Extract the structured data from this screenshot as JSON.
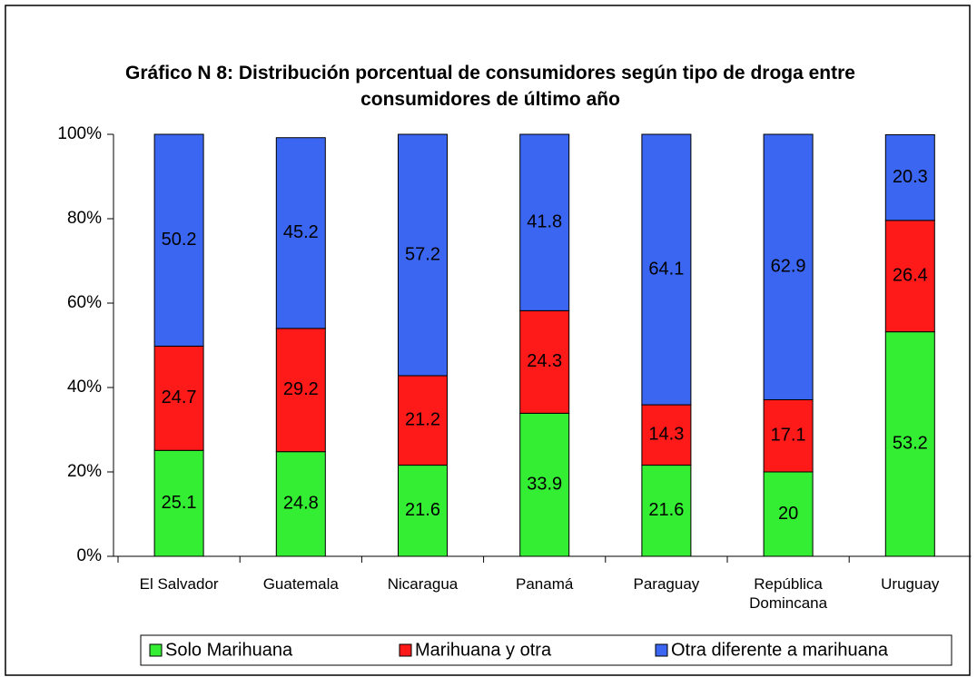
{
  "chart_data": {
    "type": "stacked_bar",
    "title": "Gráfico N 8: Distribución porcentual de consumidores según tipo de droga entre consumidores de último  año",
    "categories": [
      "El Salvador",
      "Guatemala",
      "Nicaragua",
      "Panamá",
      "Paraguay",
      "República Domincana",
      "Uruguay"
    ],
    "series": [
      {
        "name": "Solo Marihuana",
        "color": "#33ee33",
        "values": [
          25.1,
          24.8,
          21.6,
          33.9,
          21.6,
          20,
          53.2
        ]
      },
      {
        "name": "Marihuana y otra",
        "color": "#ff1a1a",
        "values": [
          24.7,
          29.2,
          21.2,
          24.3,
          14.3,
          17.1,
          26.4
        ]
      },
      {
        "name": "Otra diferente a marihuana",
        "color": "#3a66f2",
        "values": [
          50.2,
          45.2,
          57.2,
          41.8,
          64.1,
          62.9,
          20.3
        ]
      }
    ],
    "ylim": [
      0,
      100
    ],
    "yticks": [
      {
        "value": 0,
        "label": "0%"
      },
      {
        "value": 20,
        "label": "20%"
      },
      {
        "value": 40,
        "label": "40%"
      },
      {
        "value": 60,
        "label": "60%"
      },
      {
        "value": 80,
        "label": "80%"
      },
      {
        "value": 100,
        "label": "100%"
      }
    ],
    "legend": "bottom"
  }
}
